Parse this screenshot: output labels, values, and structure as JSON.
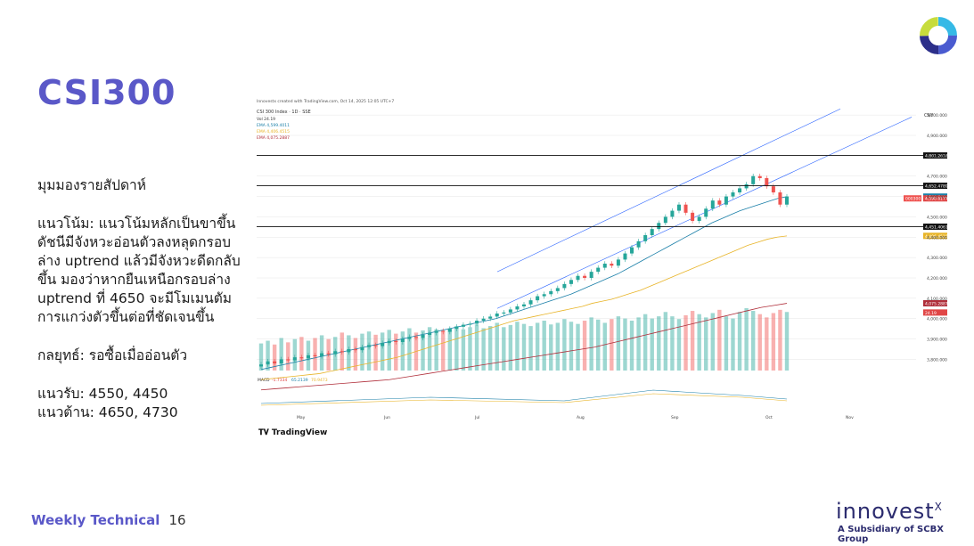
{
  "slide": {
    "title": "CSI300",
    "section_heading": "มุมมองรายสัปดาห์",
    "trend_text": "แนวโน้ม: แนวโน้มหลักเป็นขาขึ้น ดัชนีมีจังหวะอ่อนตัวลงหลุดกรอบล่าง uptrend แล้วมีจังหวะดีดกลับขึ้น มองว่าหากยืนเหนือกรอบล่าง uptrend ที่ 4650 จะมีโมเมนตัมการแกว่งตัวขึ้นต่อที่ชัดเจนขึ้น",
    "strategy_text": "กลยุทธ์: รอซื้อเมื่ออ่อนตัว",
    "support_text": "แนวรับ: 4550, 4450",
    "resistance_text": "แนวต้าน: 4650, 4730",
    "footer_label": "Weekly Technical",
    "page_number": "16",
    "brand_name": "innovest",
    "brand_sup": "X",
    "brand_sub": "A Subsidiary of SCBX Group"
  },
  "chart_data": {
    "type": "candlestick",
    "header_line": "Innovestx created with TradingView.com, Oct 14, 2025 12:05 UTC+7",
    "symbol_line": "CSI 300 Index · 1D · SSE",
    "indicator_lines": [
      "Vol  24.19",
      "EMA  4,599.4011",
      "EMA  4,406.4515",
      "EMA  4,075.2887"
    ],
    "currency": "CNY",
    "x_labels": [
      "May",
      "Jun",
      "Jul",
      "Aug",
      "Sep",
      "Oct",
      "Nov"
    ],
    "y_ticks": [
      5000,
      4900,
      4800,
      4700,
      4600,
      4500,
      4400,
      4300,
      4200,
      4100,
      4000,
      3900,
      3800
    ],
    "ylim": [
      3780,
      5040
    ],
    "horizontal_levels": [
      {
        "value": 4801.2618,
        "label": "4,801.2618"
      },
      {
        "value": 4652.4789,
        "label": "4,652.4789"
      },
      {
        "value": 4451.4061,
        "label": "4,451.4061"
      }
    ],
    "price_labels": [
      {
        "value": 4599.4011,
        "label": "4,599.4011",
        "color": "#1a7fa8"
      },
      {
        "value": 4590.6177,
        "label": "4,590.6177",
        "color": "#e04646"
      },
      {
        "value": 4406.4515,
        "label": "4,406.4515",
        "color": "#e8b428"
      },
      {
        "value": 4075.2887,
        "label": "4,075.2887",
        "color": "#b02e3a"
      },
      {
        "value": 4030,
        "label": "24.19",
        "color": "#e04646"
      }
    ],
    "symbol_badge": "000300",
    "macd_label": "MACD",
    "macd_values": [
      "-5.7334",
      "65.2139",
      "70.9473"
    ],
    "closes": [
      3775,
      3790,
      3780,
      3800,
      3795,
      3810,
      3805,
      3820,
      3815,
      3830,
      3825,
      3840,
      3835,
      3850,
      3845,
      3860,
      3870,
      3865,
      3880,
      3890,
      3885,
      3900,
      3910,
      3905,
      3920,
      3930,
      3940,
      3935,
      3950,
      3960,
      3970,
      3975,
      3990,
      4000,
      4010,
      4025,
      4030,
      4045,
      4060,
      4070,
      4090,
      4110,
      4120,
      4135,
      4150,
      4170,
      4190,
      4210,
      4200,
      4230,
      4250,
      4270,
      4260,
      4290,
      4320,
      4350,
      4380,
      4410,
      4440,
      4470,
      4500,
      4530,
      4560,
      4520,
      4480,
      4500,
      4540,
      4580,
      4560,
      4600,
      4620,
      4640,
      4660,
      4700,
      4690,
      4650,
      4620,
      4560,
      4600
    ],
    "ema_fast": [
      3750,
      3760,
      3770,
      3780,
      3790,
      3800,
      3810,
      3820,
      3830,
      3840,
      3850,
      3860,
      3870,
      3880,
      3890,
      3900,
      3910,
      3920,
      3930,
      3940,
      3950,
      3960,
      3970,
      3980,
      3990,
      4000,
      4015,
      4030,
      4045,
      4060,
      4075,
      4090,
      4105,
      4120,
      4140,
      4160,
      4180,
      4200,
      4220,
      4245,
      4270,
      4295,
      4320,
      4345,
      4370,
      4395,
      4420,
      4445,
      4470,
      4490,
      4510,
      4530,
      4545,
      4560,
      4575,
      4590,
      4599
    ],
    "ema_slow": [
      3700,
      3705,
      3710,
      3715,
      3720,
      3725,
      3730,
      3740,
      3750,
      3760,
      3770,
      3780,
      3790,
      3800,
      3810,
      3825,
      3840,
      3855,
      3870,
      3885,
      3900,
      3915,
      3930,
      3945,
      3960,
      3975,
      3990,
      4000,
      4010,
      4020,
      4030,
      4040,
      4050,
      4060,
      4075,
      4085,
      4095,
      4110,
      4125,
      4140,
      4160,
      4180,
      4200,
      4220,
      4240,
      4260,
      4280,
      4300,
      4320,
      4340,
      4360,
      4375,
      4390,
      4400,
      4406
    ],
    "ema_long": [
      3650,
      3655,
      3660,
      3665,
      3670,
      3675,
      3680,
      3685,
      3690,
      3695,
      3700,
      3710,
      3720,
      3730,
      3740,
      3750,
      3760,
      3770,
      3780,
      3790,
      3800,
      3810,
      3820,
      3830,
      3840,
      3850,
      3860,
      3875,
      3890,
      3905,
      3920,
      3935,
      3950,
      3965,
      3980,
      3995,
      4010,
      4025,
      4040,
      4055,
      4065,
      4075
    ],
    "volume": [
      50,
      55,
      48,
      60,
      52,
      58,
      62,
      55,
      60,
      65,
      58,
      62,
      70,
      65,
      60,
      68,
      72,
      66,
      70,
      75,
      68,
      72,
      78,
      70,
      74,
      80,
      76,
      72,
      78,
      82,
      76,
      80,
      85,
      78,
      82,
      88,
      80,
      84,
      90,
      86,
      82,
      88,
      92,
      85,
      88,
      95,
      90,
      86,
      92,
      98,
      94,
      88,
      95,
      100,
      96,
      92,
      98,
      104,
      96,
      100,
      108,
      100,
      95,
      102,
      110,
      104,
      98,
      106,
      112,
      100,
      96,
      108,
      115,
      110,
      104,
      98,
      106,
      112,
      108
    ]
  },
  "colors": {
    "accent": "#5a58c8",
    "up_candle": "#26a69a",
    "down_candle": "#ef5350",
    "channel": "#2962ff",
    "ema_fast": "#1a7fa8",
    "ema_slow": "#e8b428",
    "ema_long": "#b02e3a"
  },
  "tradingview_label": "TradingView"
}
